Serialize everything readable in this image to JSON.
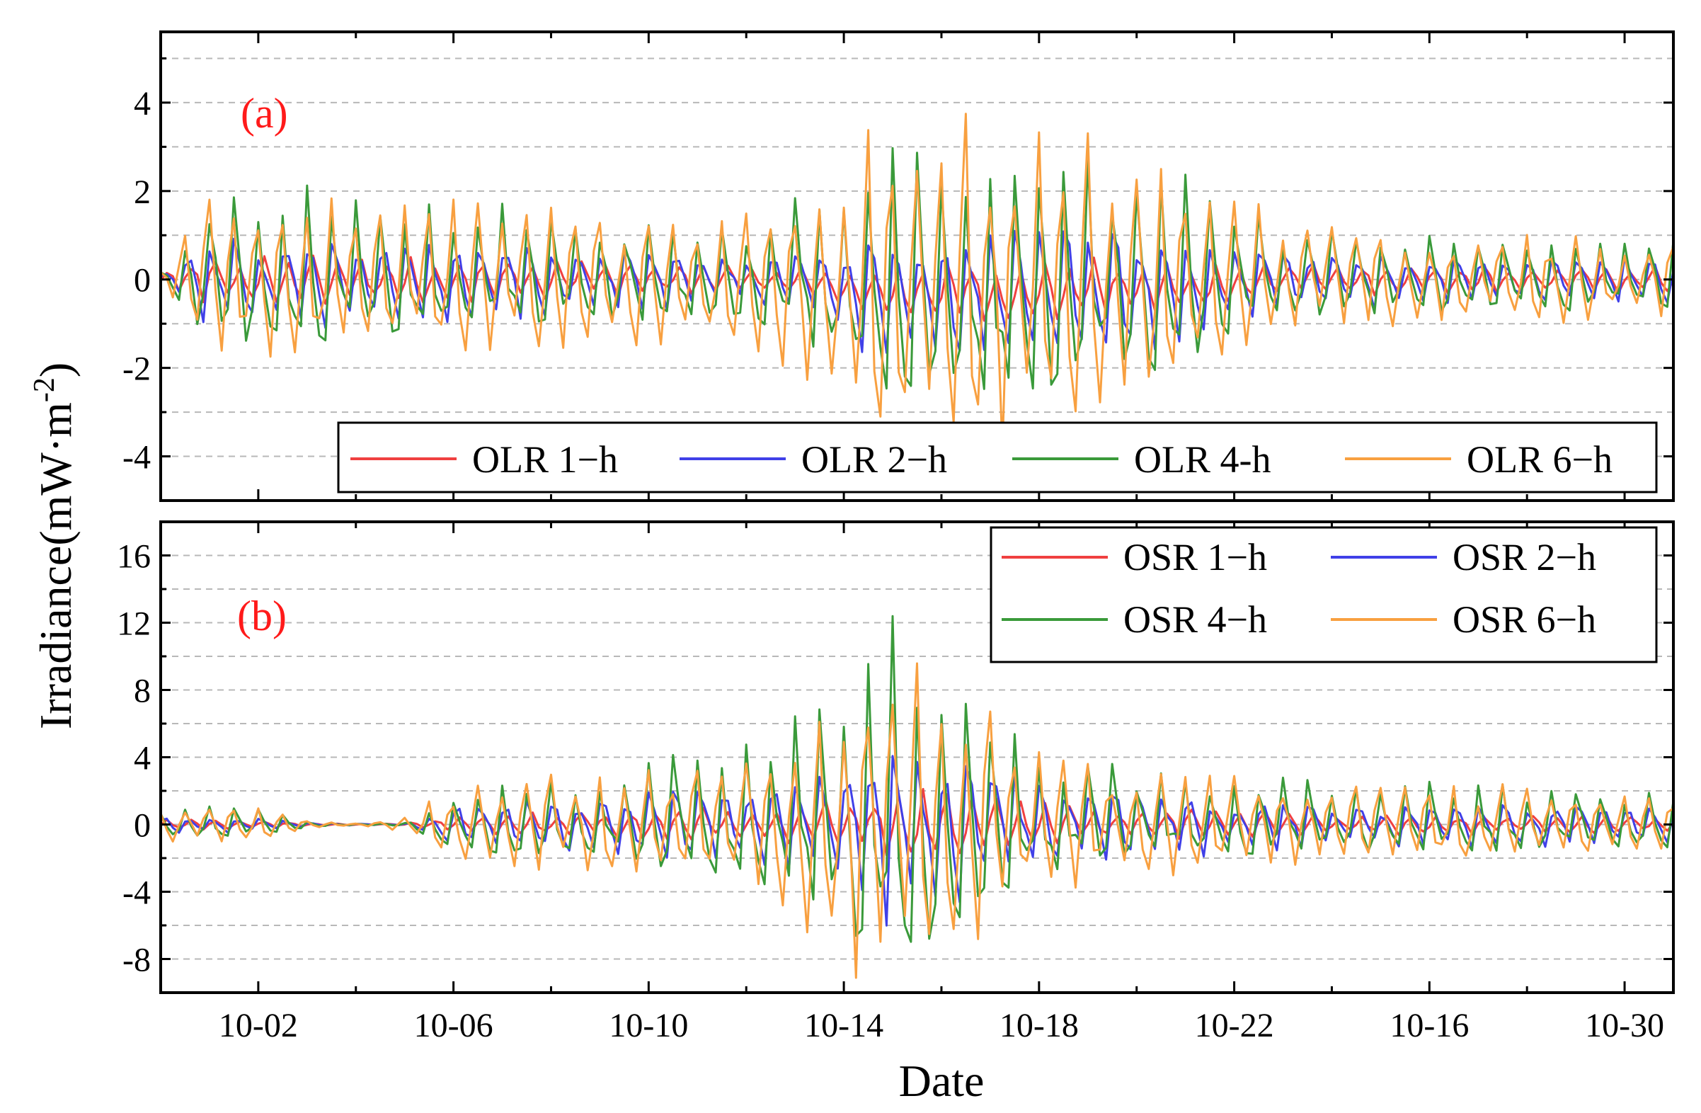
{
  "chart_data": [
    {
      "type": "line",
      "panel_label": "(a)",
      "xlabel": "Date",
      "ylabel": "Irradiance(mW·m",
      "ylabel_sup": "-2",
      "ylabel_close": ")",
      "ylim": [
        -5,
        5.6
      ],
      "yticks": [
        -4,
        -2,
        0,
        2,
        4
      ],
      "ytick_labels": [
        "-4",
        "-2",
        "0",
        "2",
        "4"
      ],
      "xlim": [
        0,
        31
      ],
      "xticks": [
        2,
        6,
        10,
        14,
        18,
        22,
        26,
        30
      ],
      "xtick_labels": [
        "10-02",
        "10-06",
        "10-10",
        "10-14",
        "10-18",
        "10-22",
        "10-16",
        "10-30"
      ],
      "grid": true,
      "legend_position": "bottom-right",
      "series": [
        {
          "name": "OLR 1−h",
          "color": "#f04040",
          "amp": [
            0.15,
            0.6,
            0.55,
            0.55,
            0.55,
            0.5,
            0.5,
            0.45,
            0.45,
            0.4,
            0.35,
            0.3,
            0.3,
            0.35,
            0.55,
            0.55,
            0.65,
            0.7,
            0.75,
            0.7,
            0.6,
            0.5,
            0.45,
            0.4,
            0.35,
            0.35,
            0.35,
            0.3,
            0.3,
            0.3,
            0.3,
            0.3
          ],
          "bias": [
            0,
            0,
            0,
            0,
            0,
            0,
            0,
            0,
            0,
            0,
            0,
            0,
            0,
            0,
            -0.2,
            -0.3,
            -0.3,
            -0.3,
            -0.3,
            -0.2,
            -0.2,
            -0.2,
            -0.1,
            0,
            0,
            0,
            0,
            0,
            0,
            0,
            0,
            0
          ]
        },
        {
          "name": "OLR 2−h",
          "color": "#4040e8",
          "amp": [
            0.15,
            1.0,
            1.0,
            1.0,
            1.0,
            0.9,
            0.85,
            0.8,
            0.8,
            0.75,
            0.7,
            0.6,
            0.6,
            0.75,
            1.1,
            1.4,
            1.6,
            1.7,
            1.7,
            1.6,
            1.4,
            1.1,
            0.8,
            0.7,
            0.6,
            0.6,
            0.6,
            0.55,
            0.55,
            0.55,
            0.55,
            0.5
          ],
          "bias": [
            0,
            0,
            0,
            0,
            0,
            0,
            0,
            0,
            0,
            0,
            0,
            0,
            0,
            0,
            -0.3,
            -0.4,
            -0.4,
            -0.4,
            -0.4,
            -0.3,
            -0.3,
            -0.2,
            -0.1,
            0,
            0,
            0,
            0,
            0,
            0,
            0,
            0,
            0
          ]
        },
        {
          "name": "OLR 4-h",
          "color": "#3a9a3a",
          "amp": [
            0.2,
            1.8,
            1.8,
            1.8,
            1.7,
            1.6,
            1.5,
            1.4,
            1.3,
            1.25,
            1.2,
            1.1,
            1.2,
            1.6,
            2.4,
            2.9,
            3.0,
            3.0,
            2.9,
            2.8,
            2.6,
            2.1,
            1.5,
            1.1,
            1.0,
            0.95,
            0.95,
            0.9,
            0.9,
            0.9,
            0.85,
            0.8
          ],
          "bias": [
            0,
            0,
            0,
            0,
            0,
            0,
            0,
            0,
            0,
            0,
            0,
            0,
            0,
            0,
            -0.3,
            -0.4,
            -0.4,
            -0.4,
            -0.4,
            -0.3,
            -0.3,
            -0.2,
            -0.1,
            0,
            0,
            0,
            0,
            0,
            0,
            0,
            0,
            0
          ]
        },
        {
          "name": "OLR 6−h",
          "color": "#f8a040",
          "amp": [
            0.25,
            2.0,
            2.0,
            1.9,
            1.9,
            1.8,
            1.7,
            1.6,
            1.6,
            1.5,
            1.5,
            1.5,
            1.7,
            2.2,
            3.2,
            4.3,
            4.2,
            4.0,
            3.8,
            3.6,
            3.3,
            2.7,
            1.9,
            1.4,
            1.2,
            1.1,
            1.1,
            1.05,
            1.0,
            1.0,
            1.0,
            0.95
          ],
          "bias": [
            0,
            0,
            0,
            0,
            0,
            0,
            0,
            0,
            0,
            0,
            0,
            0,
            0,
            0,
            -0.3,
            -0.4,
            -0.4,
            -0.4,
            -0.4,
            -0.3,
            -0.3,
            -0.2,
            -0.1,
            0,
            0,
            0,
            0,
            0,
            0,
            0,
            0,
            0
          ]
        }
      ]
    },
    {
      "type": "line",
      "panel_label": "(b)",
      "xlabel": "Date",
      "ylim": [
        -10,
        18
      ],
      "yticks": [
        -8,
        -4,
        0,
        4,
        8,
        12,
        16
      ],
      "ytick_labels": [
        "-8",
        "-4",
        "0",
        "4",
        "8",
        "12",
        "16"
      ],
      "xlim": [
        0,
        31
      ],
      "xticks": [
        2,
        6,
        10,
        14,
        18,
        22,
        26,
        30
      ],
      "xtick_labels": [
        "10-02",
        "10-06",
        "10-10",
        "10-14",
        "10-18",
        "10-22",
        "10-16",
        "10-30"
      ],
      "grid": true,
      "legend_position": "top-right",
      "series": [
        {
          "name": "OSR 1−h",
          "color": "#f04040",
          "amp": [
            0.3,
            0.3,
            0.25,
            0.1,
            0.05,
            0.05,
            0.6,
            0.7,
            0.7,
            0.8,
            0.9,
            1.0,
            1.1,
            1.3,
            1.7,
            2.2,
            2.0,
            1.6,
            1.3,
            1.0,
            0.9,
            0.9,
            0.8,
            0.7,
            0.6,
            0.6,
            0.6,
            0.6,
            0.5,
            0.5,
            0.5,
            0.4
          ],
          "bias": [
            0,
            0,
            0,
            0,
            0,
            0,
            0,
            0,
            0,
            0,
            0,
            0,
            0,
            0,
            0,
            0,
            0,
            0,
            0,
            0,
            0,
            0,
            0,
            0,
            0,
            0,
            0,
            0,
            0,
            0,
            0,
            0
          ]
        },
        {
          "name": "OSR 2−h",
          "color": "#4040e8",
          "amp": [
            0.5,
            0.5,
            0.4,
            0.1,
            0.05,
            0.05,
            1.3,
            1.6,
            1.7,
            1.9,
            2.1,
            2.4,
            2.6,
            3.0,
            4.2,
            5.8,
            5.2,
            3.8,
            2.8,
            2.2,
            2.0,
            1.9,
            1.7,
            1.5,
            1.4,
            1.3,
            1.3,
            1.3,
            1.2,
            1.2,
            1.1,
            1.0
          ],
          "bias": [
            0,
            0,
            0,
            0,
            0,
            0,
            0,
            0,
            0,
            0,
            0,
            0,
            0,
            0,
            0,
            0,
            0,
            0,
            0,
            0,
            0,
            0,
            0,
            0,
            0,
            0,
            0,
            0,
            0,
            0,
            0,
            0
          ]
        },
        {
          "name": "OSR 4−h",
          "color": "#3a9a3a",
          "amp": [
            0.8,
            0.9,
            0.8,
            0.2,
            0.05,
            0.1,
            1.8,
            2.2,
            2.4,
            2.8,
            3.2,
            3.7,
            4.3,
            5.4,
            8.0,
            10.5,
            9.5,
            6.8,
            4.2,
            3.2,
            2.9,
            2.7,
            2.5,
            2.3,
            2.2,
            2.1,
            2.1,
            2.0,
            1.9,
            1.9,
            1.8,
            1.7
          ],
          "bias": [
            0,
            0,
            0,
            0,
            0,
            0,
            0,
            0,
            0,
            0,
            0,
            0,
            0,
            0,
            0,
            0,
            0,
            0,
            0,
            0,
            0,
            0,
            0,
            0,
            0,
            0,
            0,
            0,
            0,
            0,
            0,
            0
          ]
        },
        {
          "name": "OSR 6−h",
          "color": "#f8a040",
          "amp": [
            1.0,
            1.1,
            1.0,
            0.2,
            0.05,
            0.4,
            2.2,
            2.6,
            2.9,
            3.2,
            3.5,
            4.0,
            4.8,
            6.2,
            9.0,
            11.8,
            10.5,
            7.2,
            4.6,
            3.6,
            3.3,
            3.0,
            2.8,
            2.6,
            2.5,
            2.4,
            2.4,
            2.3,
            2.2,
            2.1,
            2.0,
            1.9
          ],
          "bias": [
            0,
            0,
            0,
            0,
            0,
            0,
            0,
            0,
            0,
            0,
            0,
            0,
            0,
            0,
            0,
            0,
            0,
            0,
            0,
            0,
            0,
            0,
            0,
            0,
            0,
            0,
            0,
            0,
            0,
            0,
            0,
            0
          ]
        }
      ]
    }
  ]
}
